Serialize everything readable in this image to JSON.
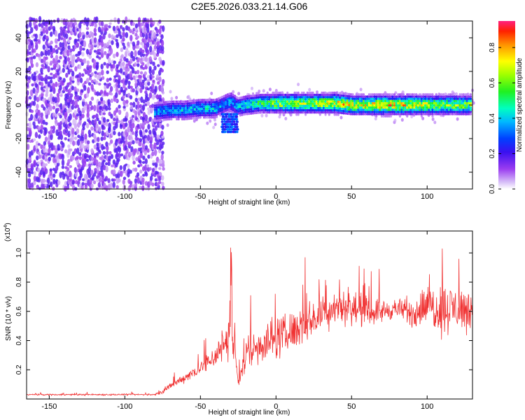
{
  "title": "C2E5.2026.033.21.14.G06",
  "chart_data": [
    {
      "type": "heatmap",
      "xlabel": "Height of straight line (km)",
      "ylabel": "Frequency (Hz)",
      "xlim": [
        -165,
        130
      ],
      "ylim": [
        -50,
        50
      ],
      "xticks": [
        -150,
        -100,
        -50,
        0,
        50,
        100
      ],
      "yticks": [
        -40,
        -20,
        0,
        20,
        40
      ],
      "colorbar": {
        "label": "Normalized spectral amplitude",
        "range": [
          0,
          0.95
        ],
        "ticks": [
          0.0,
          0.2,
          0.4,
          0.6,
          0.8
        ],
        "tick_labels": [
          "0.0",
          "0.2",
          "0.4",
          "0.6",
          "0.8"
        ]
      },
      "signal_trace": {
        "x": [
          -80,
          -70,
          -60,
          -50,
          -40,
          -35,
          -30,
          -25,
          -20,
          -10,
          0,
          10,
          20,
          30,
          40,
          50,
          60,
          70,
          80,
          90,
          100,
          110,
          120,
          130
        ],
        "freq": [
          -4,
          -3,
          -3,
          -2,
          -2,
          0,
          2,
          -1,
          0,
          1,
          1,
          1,
          1,
          1,
          1,
          0,
          0,
          0,
          0,
          0,
          0,
          0,
          0,
          0
        ],
        "peak_amplitude": [
          0.45,
          0.45,
          0.5,
          0.5,
          0.5,
          0.4,
          0.5,
          0.45,
          0.55,
          0.65,
          0.75,
          0.8,
          0.8,
          0.8,
          0.9,
          0.85,
          0.85,
          0.95,
          0.9,
          0.85,
          0.8,
          0.75,
          0.75,
          0.75
        ]
      },
      "noise_region": {
        "x_range": [
          -165,
          -75
        ],
        "freq_range": [
          -50,
          50
        ],
        "amplitude": 0.12
      }
    },
    {
      "type": "line",
      "xlabel": "Height of straight line (km)",
      "ylabel": "SNR (10 * v/v)",
      "y_multiplier": "(x10",
      "y_multiplier_exp": "4",
      "y_multiplier_close": ")",
      "xlim": [
        -165,
        130
      ],
      "ylim": [
        0,
        1.15
      ],
      "xticks": [
        -150,
        -100,
        -50,
        0,
        50,
        100
      ],
      "yticks": [
        0.2,
        0.4,
        0.6,
        0.8,
        1.0
      ],
      "ytick_labels": [
        "0.2",
        "0.4",
        "0.6",
        "0.8",
        "1.0"
      ],
      "color": "#f03232",
      "envelope": {
        "x": [
          -165,
          -80,
          -75,
          -65,
          -55,
          -45,
          -38,
          -33,
          -30,
          -27,
          -25,
          -20,
          -10,
          0,
          10,
          20,
          30,
          40,
          50,
          60,
          70,
          80,
          90,
          100,
          110,
          120,
          130
        ],
        "base": [
          0.03,
          0.03,
          0.05,
          0.12,
          0.18,
          0.25,
          0.32,
          0.4,
          0.5,
          0.3,
          0.12,
          0.3,
          0.38,
          0.42,
          0.45,
          0.52,
          0.58,
          0.64,
          0.62,
          0.6,
          0.6,
          0.62,
          0.58,
          0.64,
          0.62,
          0.62,
          0.6
        ],
        "amp": [
          0.01,
          0.01,
          0.03,
          0.05,
          0.08,
          0.12,
          0.2,
          0.25,
          0.45,
          0.15,
          0.1,
          0.25,
          0.25,
          0.28,
          0.25,
          0.25,
          0.25,
          0.24,
          0.22,
          0.18,
          0.15,
          0.12,
          0.18,
          0.25,
          0.35,
          0.3,
          0.28
        ]
      }
    }
  ]
}
